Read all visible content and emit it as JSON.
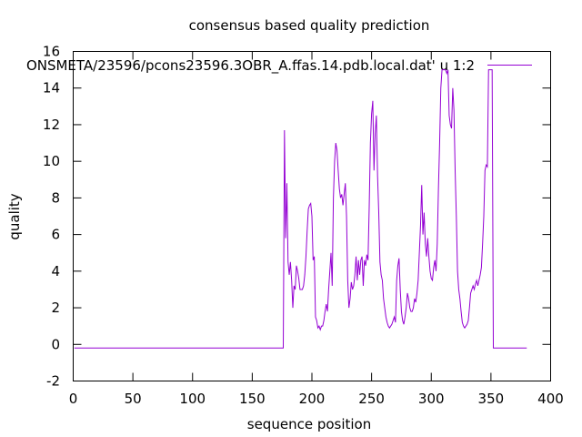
{
  "chart_data": {
    "type": "line",
    "title": "consensus based quality prediction",
    "xlabel": "sequence position",
    "ylabel": "quality",
    "xlim": [
      0,
      400
    ],
    "ylim": [
      -2,
      16
    ],
    "xticks": [
      0,
      50,
      100,
      150,
      200,
      250,
      300,
      350,
      400
    ],
    "yticks": [
      -2,
      0,
      2,
      4,
      6,
      8,
      10,
      12,
      14,
      16
    ],
    "grid": false,
    "legend_position": "top-right",
    "series": [
      {
        "name": "ONSMETA/23596/pcons23596.3OBR_A.ffas.14.pdb.local.dat' u 1:2",
        "color": "#9400d3",
        "points": [
          [
            1,
            -0.2
          ],
          [
            176,
            -0.2
          ],
          [
            177,
            11.7
          ],
          [
            178,
            5.8
          ],
          [
            179,
            8.8
          ],
          [
            180,
            4.5
          ],
          [
            181,
            3.8
          ],
          [
            182,
            4.5
          ],
          [
            183,
            3.5
          ],
          [
            184,
            2.0
          ],
          [
            185,
            3.2
          ],
          [
            186,
            3.0
          ],
          [
            187,
            4.3
          ],
          [
            188,
            4.0
          ],
          [
            189,
            3.6
          ],
          [
            190,
            3.0
          ],
          [
            191,
            3.0
          ],
          [
            192,
            3.0
          ],
          [
            193,
            3.2
          ],
          [
            194,
            3.8
          ],
          [
            195,
            4.8
          ],
          [
            196,
            6.2
          ],
          [
            197,
            7.4
          ],
          [
            198,
            7.6
          ],
          [
            199,
            7.7
          ],
          [
            200,
            7.0
          ],
          [
            201,
            4.6
          ],
          [
            202,
            4.8
          ],
          [
            203,
            1.5
          ],
          [
            204,
            1.3
          ],
          [
            205,
            0.9
          ],
          [
            206,
            1.0
          ],
          [
            207,
            0.8
          ],
          [
            208,
            1.0
          ],
          [
            209,
            1.0
          ],
          [
            210,
            1.3
          ],
          [
            211,
            1.8
          ],
          [
            212,
            2.2
          ],
          [
            213,
            1.8
          ],
          [
            214,
            3.0
          ],
          [
            215,
            4.0
          ],
          [
            216,
            5.0
          ],
          [
            217,
            3.2
          ],
          [
            218,
            8.0
          ],
          [
            219,
            10.0
          ],
          [
            220,
            11.0
          ],
          [
            221,
            10.6
          ],
          [
            222,
            9.5
          ],
          [
            223,
            8.5
          ],
          [
            224,
            8.0
          ],
          [
            225,
            8.2
          ],
          [
            226,
            7.6
          ],
          [
            227,
            8.2
          ],
          [
            228,
            8.8
          ],
          [
            229,
            7.0
          ],
          [
            230,
            3.5
          ],
          [
            231,
            2.0
          ],
          [
            232,
            2.5
          ],
          [
            233,
            3.4
          ],
          [
            234,
            3.0
          ],
          [
            235,
            3.2
          ],
          [
            236,
            3.8
          ],
          [
            237,
            4.8
          ],
          [
            238,
            3.5
          ],
          [
            239,
            4.6
          ],
          [
            240,
            3.8
          ],
          [
            241,
            4.6
          ],
          [
            242,
            4.8
          ],
          [
            243,
            3.2
          ],
          [
            244,
            4.6
          ],
          [
            245,
            4.3
          ],
          [
            246,
            4.9
          ],
          [
            247,
            4.6
          ],
          [
            248,
            7.5
          ],
          [
            249,
            11.0
          ],
          [
            250,
            12.6
          ],
          [
            251,
            13.3
          ],
          [
            252,
            9.5
          ],
          [
            253,
            11.5
          ],
          [
            254,
            12.5
          ],
          [
            255,
            9.2
          ],
          [
            256,
            7.2
          ],
          [
            257,
            4.5
          ],
          [
            258,
            3.8
          ],
          [
            259,
            3.5
          ],
          [
            260,
            2.5
          ],
          [
            261,
            2.0
          ],
          [
            262,
            1.5
          ],
          [
            263,
            1.2
          ],
          [
            264,
            1.0
          ],
          [
            265,
            0.9
          ],
          [
            266,
            1.0
          ],
          [
            267,
            1.1
          ],
          [
            268,
            1.3
          ],
          [
            269,
            1.5
          ],
          [
            270,
            1.2
          ],
          [
            271,
            3.5
          ],
          [
            272,
            4.3
          ],
          [
            273,
            4.7
          ],
          [
            274,
            3.0
          ],
          [
            275,
            1.8
          ],
          [
            276,
            1.3
          ],
          [
            277,
            1.1
          ],
          [
            278,
            1.5
          ],
          [
            279,
            2.0
          ],
          [
            280,
            2.8
          ],
          [
            281,
            2.5
          ],
          [
            282,
            2.0
          ],
          [
            283,
            1.8
          ],
          [
            284,
            1.8
          ],
          [
            285,
            2.0
          ],
          [
            286,
            2.5
          ],
          [
            287,
            2.3
          ],
          [
            288,
            2.8
          ],
          [
            289,
            3.5
          ],
          [
            290,
            5.0
          ],
          [
            291,
            6.5
          ],
          [
            292,
            8.7
          ],
          [
            293,
            6.0
          ],
          [
            294,
            7.2
          ],
          [
            295,
            5.5
          ],
          [
            296,
            4.8
          ],
          [
            297,
            5.8
          ],
          [
            298,
            4.8
          ],
          [
            299,
            4.0
          ],
          [
            300,
            3.6
          ],
          [
            301,
            3.5
          ],
          [
            302,
            4.2
          ],
          [
            303,
            4.6
          ],
          [
            304,
            4.0
          ],
          [
            305,
            5.5
          ],
          [
            306,
            8.5
          ],
          [
            307,
            11.0
          ],
          [
            308,
            14.0
          ],
          [
            309,
            15.0
          ],
          [
            310,
            15.0
          ],
          [
            311,
            15.0
          ],
          [
            312,
            15.0
          ],
          [
            313,
            14.8
          ],
          [
            314,
            15.0
          ],
          [
            315,
            12.5
          ],
          [
            316,
            12.0
          ],
          [
            317,
            11.8
          ],
          [
            318,
            14.0
          ],
          [
            319,
            12.8
          ],
          [
            320,
            9.5
          ],
          [
            321,
            7.0
          ],
          [
            322,
            4.0
          ],
          [
            323,
            3.0
          ],
          [
            324,
            2.5
          ],
          [
            325,
            1.8
          ],
          [
            326,
            1.2
          ],
          [
            327,
            1.0
          ],
          [
            328,
            0.9
          ],
          [
            329,
            1.0
          ],
          [
            330,
            1.1
          ],
          [
            331,
            1.3
          ],
          [
            332,
            2.0
          ],
          [
            333,
            2.8
          ],
          [
            334,
            3.0
          ],
          [
            335,
            3.2
          ],
          [
            336,
            3.0
          ],
          [
            337,
            3.3
          ],
          [
            338,
            3.5
          ],
          [
            339,
            3.2
          ],
          [
            340,
            3.5
          ],
          [
            341,
            3.8
          ],
          [
            342,
            4.2
          ],
          [
            343,
            5.5
          ],
          [
            344,
            7.0
          ],
          [
            345,
            9.5
          ],
          [
            346,
            9.8
          ],
          [
            347,
            9.7
          ],
          [
            348,
            15.0
          ],
          [
            349,
            15.0
          ],
          [
            350,
            15.0
          ],
          [
            351,
            15.0
          ],
          [
            352,
            -0.2
          ],
          [
            380,
            -0.2
          ]
        ]
      }
    ]
  }
}
